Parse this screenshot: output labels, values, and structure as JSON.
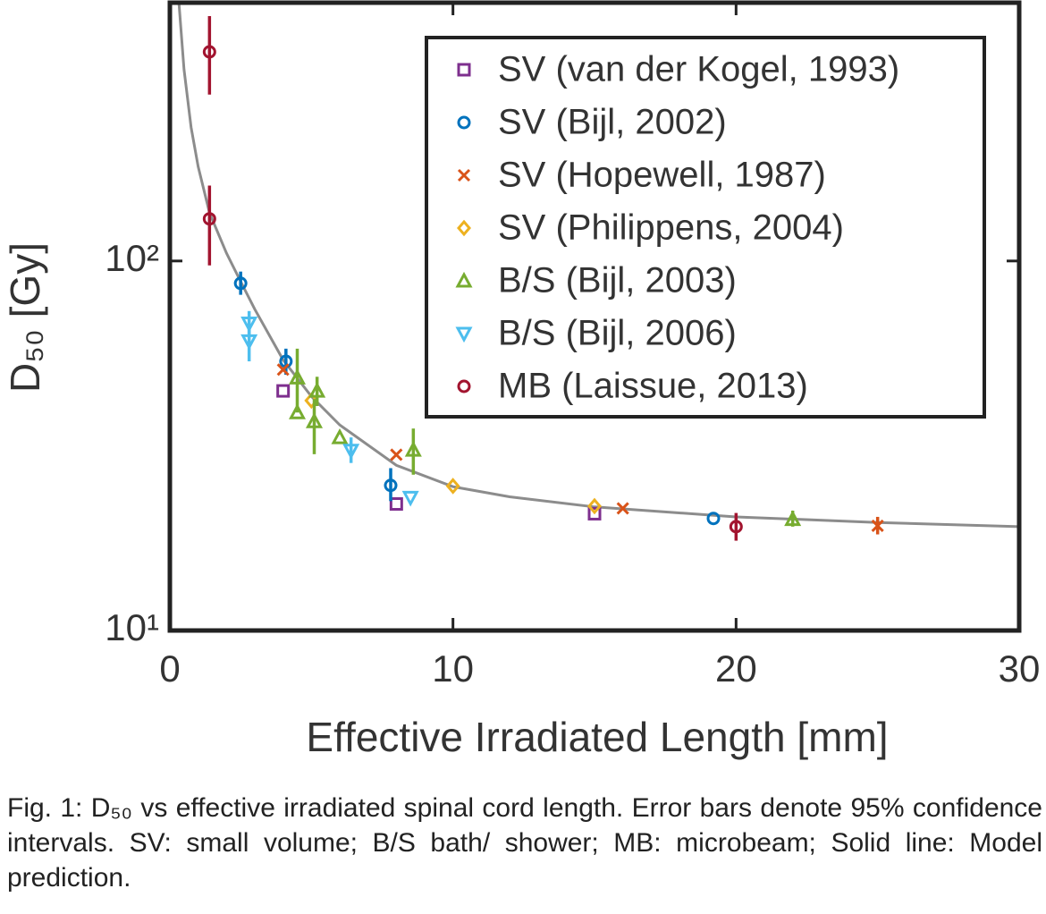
{
  "chart_data": {
    "type": "scatter",
    "xlabel": "Effective Irradiated Length [mm]",
    "ylabel": "D₅₀ [Gy]",
    "xlim": [
      0,
      30
    ],
    "xticks": [
      0,
      10,
      20,
      30
    ],
    "ylim": [
      10,
      500
    ],
    "ylog": true,
    "yticks": [
      {
        "value": 10,
        "label": "10¹"
      },
      {
        "value": 100,
        "label": "10²"
      }
    ],
    "legend": "upper right",
    "series": [
      {
        "name": "SV (van der Kogel, 1993)",
        "color": "#7e2f8e",
        "marker": "square",
        "x": [
          4.0,
          8.0,
          15.0
        ],
        "values": [
          44.5,
          22,
          20.7
        ],
        "err_low": [
          null,
          null,
          null
        ],
        "err_high": [
          null,
          null,
          null
        ]
      },
      {
        "name": "SV (Bijl, 2002)",
        "color": "#0072bd",
        "marker": "circle",
        "x": [
          2.5,
          4.1,
          7.8,
          19.2
        ],
        "values": [
          87,
          53.5,
          24.7,
          20.1
        ],
        "err_low": [
          81,
          49.2,
          22.4,
          null
        ],
        "err_high": [
          93.6,
          57.9,
          27.5,
          null
        ]
      },
      {
        "name": "SV (Hopewell, 1987)",
        "color": "#d95319",
        "marker": "x",
        "x": [
          4.0,
          8.0,
          16.0,
          25.0
        ],
        "values": [
          50.8,
          29.9,
          21.4,
          19.2
        ],
        "err_low": [
          null,
          null,
          null,
          18.2
        ],
        "err_high": [
          null,
          null,
          null,
          20.3
        ]
      },
      {
        "name": "SV (Philippens, 2004)",
        "color": "#edb120",
        "marker": "diamond",
        "x": [
          5.0,
          10.0,
          15.0
        ],
        "values": [
          41.9,
          24.6,
          21.7
        ],
        "err_low": [
          null,
          null,
          null
        ],
        "err_high": [
          null,
          null,
          null
        ]
      },
      {
        "name": "B/S (Bijl, 2003)",
        "color": "#77ac30",
        "marker": "triangle-up",
        "x": [
          4.5,
          4.5,
          5.2,
          5.1,
          6.0,
          8.6,
          22.0
        ],
        "values": [
          48.3,
          38.9,
          44.5,
          36.8,
          33.3,
          30.8,
          20.0
        ],
        "err_low": [
          38.9,
          null,
          40.5,
          30,
          null,
          26.4,
          19.1
        ],
        "err_high": [
          57.9,
          null,
          48.6,
          42.3,
          null,
          35.2,
          21.1
        ]
      },
      {
        "name": "B/S (Bijl, 2006)",
        "color": "#4dbeee",
        "marker": "triangle-down",
        "x": [
          2.8,
          2.8,
          6.4,
          8.5
        ],
        "values": [
          67.8,
          60.7,
          30.7,
          22.9
        ],
        "err_low": [
          62.9,
          53.5,
          28.4,
          null
        ],
        "err_high": [
          73.2,
          66.3,
          33.3,
          null
        ]
      },
      {
        "name": "MB (Laissue, 2013)",
        "color": "#a2142f",
        "marker": "circle",
        "x": [
          1.4,
          1.4,
          20.0
        ],
        "values": [
          368,
          130,
          19.1
        ],
        "err_low": [
          282,
          97.3,
          17.5
        ],
        "err_high": [
          460,
          160,
          20.8
        ]
      }
    ],
    "curve": {
      "color": "#8c8c8c",
      "x": [
        0.32,
        0.5,
        0.75,
        1,
        1.4,
        2,
        2.5,
        3,
        4,
        5,
        6,
        8,
        10,
        12,
        15,
        20,
        25,
        30
      ],
      "values": [
        500,
        330,
        230,
        180,
        135,
        105,
        88,
        74,
        54,
        43,
        36,
        28,
        24.5,
        23,
        21.6,
        20.3,
        19.6,
        19.1
      ]
    }
  },
  "caption": "Fig. 1: D₅₀ vs effective irradiated spinal cord length. Error bars denote 95% confidence intervals. SV: small volume; B/S bath/ shower; MB: microbeam; Solid line: Model prediction."
}
